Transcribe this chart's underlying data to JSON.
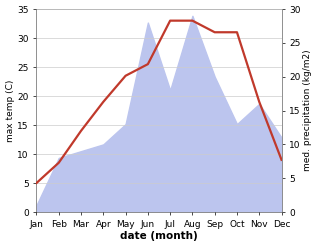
{
  "months": [
    "Jan",
    "Feb",
    "Mar",
    "Apr",
    "May",
    "Jun",
    "Jul",
    "Aug",
    "Sep",
    "Oct",
    "Nov",
    "Dec"
  ],
  "temperature": [
    5.0,
    8.5,
    14.0,
    19.0,
    23.5,
    25.5,
    33.0,
    33.0,
    31.0,
    31.0,
    19.0,
    9.0
  ],
  "precipitation": [
    1.0,
    8.0,
    9.0,
    10.0,
    13.0,
    28.0,
    18.0,
    29.0,
    20.0,
    13.0,
    16.0,
    11.0
  ],
  "temp_ylim": [
    0,
    35
  ],
  "precip_ylim": [
    0,
    30
  ],
  "temp_yticks": [
    0,
    5,
    10,
    15,
    20,
    25,
    30,
    35
  ],
  "precip_yticks": [
    0,
    5,
    10,
    15,
    20,
    25,
    30
  ],
  "temp_color": "#c0392b",
  "precip_fill_color": "#bcc5ee",
  "xlabel": "date (month)",
  "ylabel_left": "max temp (C)",
  "ylabel_right": "med. precipitation (kg/m2)",
  "background_color": "#ffffff"
}
